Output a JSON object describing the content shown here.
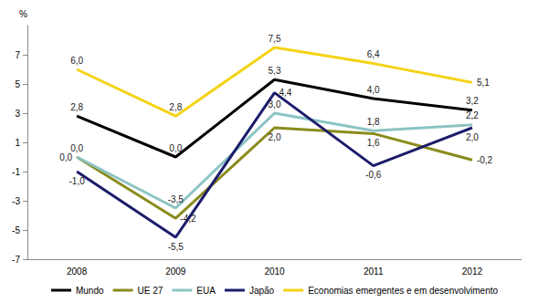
{
  "chart_data": {
    "type": "line",
    "y_label": "%",
    "categories": [
      "2008",
      "2009",
      "2010",
      "2011",
      "2012"
    ],
    "series": [
      {
        "name": "Mundo",
        "color": "#000000",
        "values": [
          2.8,
          0.0,
          5.3,
          4.0,
          3.2
        ],
        "value_labels": [
          "2,8",
          "0,0",
          "5,3",
          "4,0",
          "3,2"
        ]
      },
      {
        "name": "UE 27",
        "color": "#8b8b1e",
        "values": [
          0.0,
          -4.2,
          2.0,
          1.6,
          -0.2
        ],
        "value_labels": [
          "0,0",
          "-4,2",
          "2,0",
          "1,6",
          "-0,2"
        ]
      },
      {
        "name": "EUA",
        "color": "#8cc4c4",
        "values": [
          0.0,
          -3.5,
          3.0,
          1.8,
          2.2
        ],
        "value_labels": [
          "0,0",
          "-3,5",
          "3,0",
          "1,8",
          "2,2"
        ]
      },
      {
        "name": "Japão",
        "color": "#1c1c6b",
        "values": [
          -1.0,
          -5.5,
          4.4,
          -0.6,
          2.0
        ],
        "value_labels": [
          "-1,0",
          "-5,5",
          "4,4",
          "-0,6",
          "2,0"
        ]
      },
      {
        "name": "Economias emergentes e em desenvolvimento",
        "color": "#f5d316",
        "values": [
          6.0,
          2.8,
          7.5,
          6.4,
          5.1
        ],
        "value_labels": [
          "6,0",
          "2,8",
          "7,5",
          "6,4",
          "5,1"
        ]
      }
    ],
    "ylim": [
      -7,
      9
    ],
    "yticks": [
      -7,
      -5,
      -3,
      -1,
      1,
      3,
      5,
      7
    ],
    "grid": false,
    "legend": "bottom",
    "data_labels": true
  }
}
